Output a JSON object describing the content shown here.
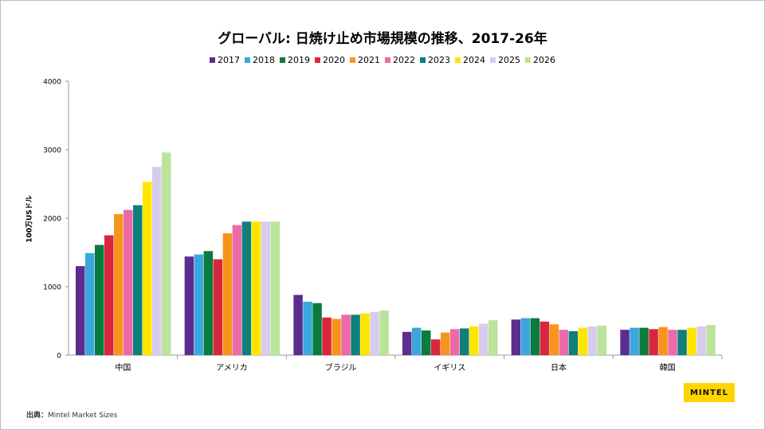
{
  "source": {
    "label": "出典：",
    "text": "Mintel Market Sizes"
  },
  "logo": {
    "text": "MINTEL",
    "color": "#ffd400"
  },
  "chart_data": {
    "type": "bar",
    "title": "グローバル: 日焼け止め市場規模の推移、2017-26年",
    "xlabel": "",
    "ylabel": "100万USドル",
    "ylim": [
      0,
      4000
    ],
    "yticks": [
      0,
      1000,
      2000,
      3000,
      4000
    ],
    "grid": false,
    "legend_position": "top",
    "categories": [
      "中国",
      "アメリカ",
      "ブラジル",
      "イギリス",
      "日本",
      "韓国"
    ],
    "series": [
      {
        "name": "2017",
        "color": "#5b2d8e",
        "values": [
          1300,
          1440,
          880,
          340,
          520,
          370
        ]
      },
      {
        "name": "2018",
        "color": "#3aa8dc",
        "values": [
          1490,
          1470,
          780,
          400,
          540,
          400
        ]
      },
      {
        "name": "2019",
        "color": "#0b7a3e",
        "values": [
          1610,
          1520,
          760,
          360,
          540,
          400
        ]
      },
      {
        "name": "2020",
        "color": "#d9263f",
        "values": [
          1750,
          1400,
          550,
          230,
          490,
          380
        ]
      },
      {
        "name": "2021",
        "color": "#f7941d",
        "values": [
          2060,
          1780,
          530,
          330,
          450,
          410
        ]
      },
      {
        "name": "2022",
        "color": "#ec6aa7",
        "values": [
          2120,
          1900,
          590,
          380,
          370,
          370
        ]
      },
      {
        "name": "2023",
        "color": "#0f7f7c",
        "values": [
          2190,
          1950,
          590,
          390,
          350,
          370
        ]
      },
      {
        "name": "2024",
        "color": "#ffe600",
        "values": [
          2530,
          1950,
          610,
          420,
          400,
          400
        ]
      },
      {
        "name": "2025",
        "color": "#d7ccec",
        "values": [
          2750,
          1950,
          630,
          460,
          420,
          420
        ]
      },
      {
        "name": "2026",
        "color": "#b9e49a",
        "values": [
          2960,
          1950,
          650,
          510,
          430,
          440
        ]
      }
    ]
  }
}
